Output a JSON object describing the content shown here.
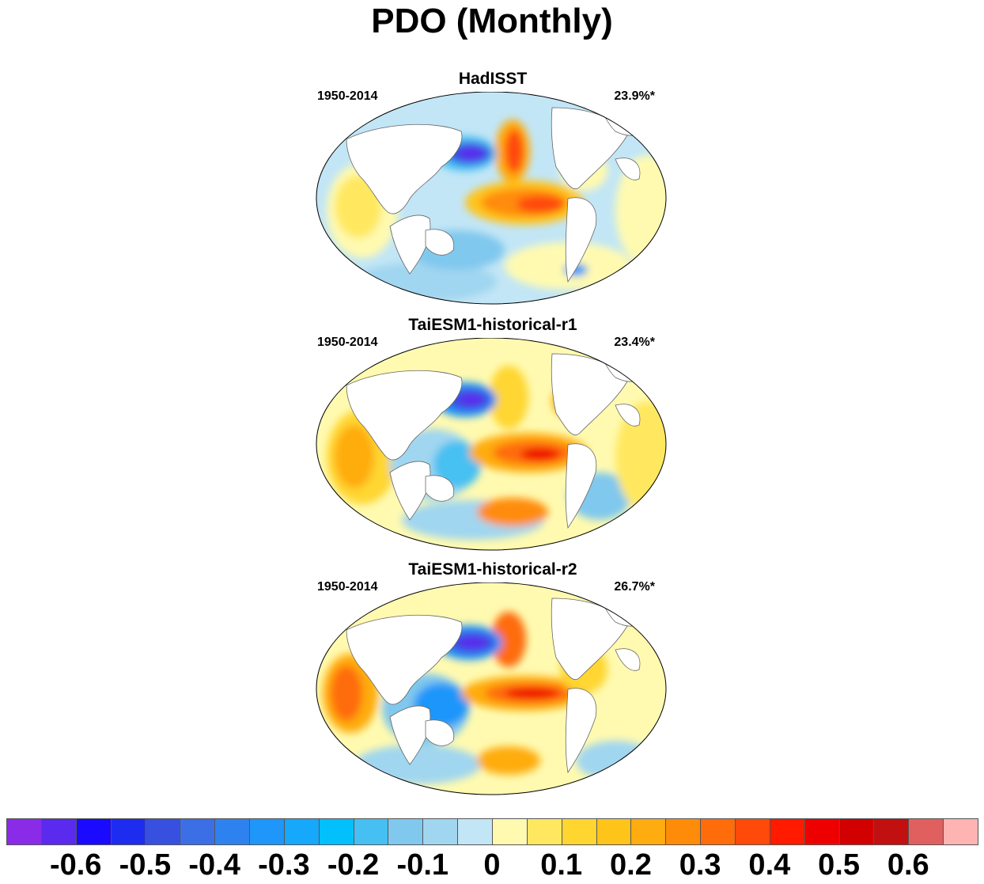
{
  "title": "PDO (Monthly)",
  "panels": [
    {
      "name": "HadISST",
      "period": "1950-2014",
      "variance": "23.9%*"
    },
    {
      "name": "TaiESM1-historical-r1",
      "period": "1950-2014",
      "variance": "23.4%*"
    },
    {
      "name": "TaiESM1-historical-r2",
      "period": "1950-2014",
      "variance": "26.7%*"
    }
  ],
  "colorbar": {
    "colors": [
      "#8a2be8",
      "#5a2aee",
      "#1a0aff",
      "#1e2cf0",
      "#3850e0",
      "#3c6ee6",
      "#2e82f0",
      "#1e96fa",
      "#16a8fa",
      "#02c0fc",
      "#46c0f2",
      "#80c8ee",
      "#a0d6f0",
      "#c2e6f6",
      "#fffab0",
      "#ffe860",
      "#ffd630",
      "#ffc41a",
      "#ffac10",
      "#ff8c08",
      "#ff6c0a",
      "#ff4a0a",
      "#ff1a00",
      "#ee0000",
      "#d20000",
      "#c21010",
      "#e06060",
      "#ffb4b4"
    ],
    "labels": [
      "-0.6",
      "-0.5",
      "-0.4",
      "-0.3",
      "-0.2",
      "-0.1",
      "0",
      "0.1",
      "0.2",
      "0.3",
      "0.4",
      "0.5",
      "0.6"
    ]
  }
}
